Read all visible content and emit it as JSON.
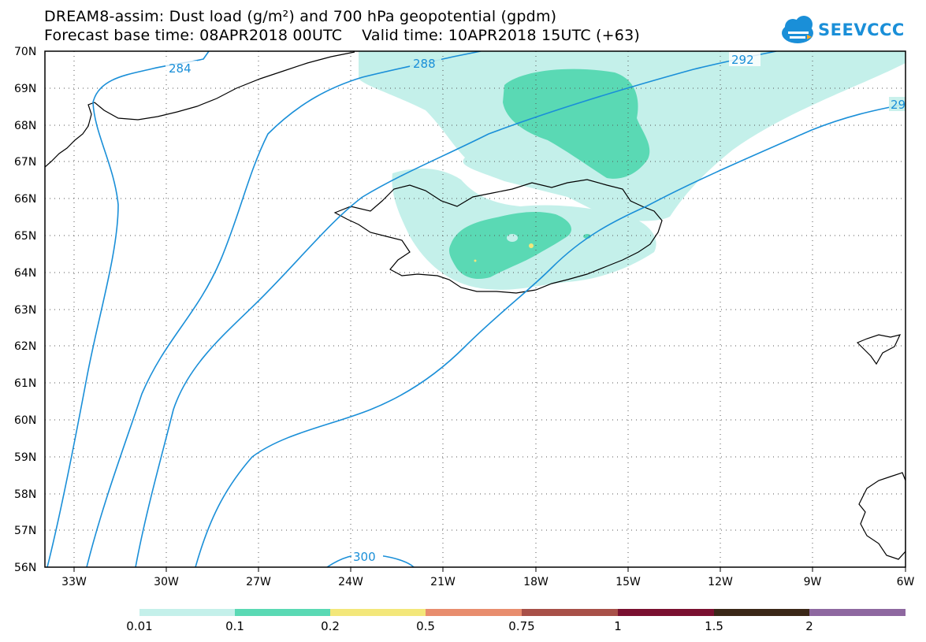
{
  "header": {
    "title_line1": "DREAM8-assim: Dust load (g/m²) and 700 hPa geopotential (gpdm)",
    "title_line2": "Forecast base time: 08APR2018 00UTC    Valid time: 10APR2018 15UTC (+63)"
  },
  "logo": {
    "text": "SEEVCCC",
    "color": "#1a8fd8"
  },
  "map": {
    "lat_labels": [
      "70N",
      "69N",
      "68N",
      "67N",
      "66N",
      "65N",
      "64N",
      "63N",
      "62N",
      "61N",
      "60N",
      "59N",
      "58N",
      "57N",
      "56N"
    ],
    "lon_labels": [
      "33W",
      "30W",
      "27W",
      "24W",
      "21W",
      "18W",
      "15W",
      "12W",
      "9W",
      "6W"
    ],
    "lat_range": [
      56,
      70
    ],
    "lon_range": [
      -34.5,
      -6
    ],
    "grid": "dotted",
    "contour_color": "#1a8fd8",
    "contour_labels": [
      "284",
      "288",
      "292",
      "29",
      "300"
    ]
  },
  "colorbar": {
    "boundaries": [
      "0.01",
      "0.1",
      "0.2",
      "0.5",
      "0.75",
      "1",
      "1.5",
      "2"
    ],
    "colors": [
      "#c4f0ea",
      "#5ad9b4",
      "#f3e77a",
      "#e88d6e",
      "#a85048",
      "#7a1030",
      "#3b2818",
      "#8e68a0"
    ]
  }
}
